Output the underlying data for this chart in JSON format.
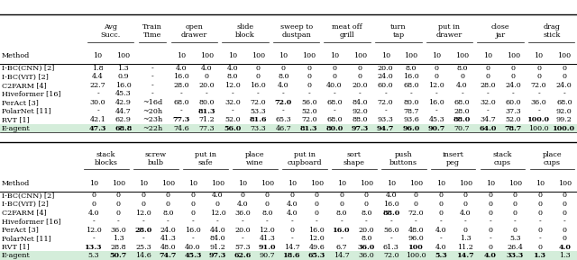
{
  "table1": {
    "col_groups": [
      {
        "name": "Avg\nSucc.",
        "span": 2
      },
      {
        "name": "Train\nTime",
        "span": 1
      },
      {
        "name": "open\ndrawer",
        "span": 2
      },
      {
        "name": "slide\nblock",
        "span": 2
      },
      {
        "name": "sweep to\ndustpan",
        "span": 2
      },
      {
        "name": "meat off\ngrill",
        "span": 2
      },
      {
        "name": "turn\ntap",
        "span": 2
      },
      {
        "name": "put in\ndrawer",
        "span": 2
      },
      {
        "name": "close\njar",
        "span": 2
      },
      {
        "name": "drag\nstick",
        "span": 2
      }
    ],
    "rows": [
      [
        "I-BC(CNN) [2]",
        "1.8",
        "1.3",
        "-",
        "4.0",
        "4.0",
        "4.0",
        "0",
        "0",
        "0",
        "0",
        "0",
        "20.0",
        "8.0",
        "0",
        "8.0",
        "0",
        "0",
        "0",
        "0"
      ],
      [
        "I-BC(ViT) [2]",
        "4.4",
        "0.9",
        "-",
        "16.0",
        "0",
        "8.0",
        "0",
        "8.0",
        "0",
        "0",
        "0",
        "24.0",
        "16.0",
        "0",
        "0",
        "0",
        "0",
        "0",
        "0"
      ],
      [
        "C2FARM [4]",
        "22.7",
        "16.0",
        "-",
        "28.0",
        "20.0",
        "12.0",
        "16.0",
        "4.0",
        "0",
        "40.0",
        "20.0",
        "60.0",
        "68.0",
        "12.0",
        "4.0",
        "28.0",
        "24.0",
        "72.0",
        "24.0"
      ],
      [
        "Hiveformer [16]",
        "-",
        "45.3",
        "-",
        "-",
        "-",
        "-",
        "-",
        "-",
        "-",
        "-",
        "-",
        "-",
        "-",
        "-",
        "-",
        "-",
        "-",
        "-",
        "-"
      ],
      [
        "PerAct [3]",
        "30.0",
        "42.9",
        "~16d",
        "68.0",
        "80.0",
        "32.0",
        "72.0",
        "72.0",
        "56.0",
        "68.0",
        "84.0",
        "72.0",
        "80.0",
        "16.0",
        "68.0",
        "32.0",
        "60.0",
        "36.0",
        "68.0"
      ],
      [
        "PolarNet [11]",
        "-",
        "44.7",
        "~20h",
        "-",
        "81.3",
        "-",
        "53.3",
        "-",
        "52.0",
        "-",
        "92.0",
        "-",
        "78.7",
        "-",
        "28.0",
        "-",
        "37.3",
        "-",
        "92.0"
      ],
      [
        "RVT [1]",
        "42.1",
        "62.9",
        "~23h",
        "77.3",
        "71.2",
        "52.0",
        "81.6",
        "65.3",
        "72.0",
        "68.0",
        "88.0",
        "93.3",
        "93.6",
        "45.3",
        "88.0",
        "34.7",
        "52.0",
        "100.0",
        "99.2"
      ],
      [
        "E-agent",
        "47.3",
        "68.8",
        "~22h",
        "74.6",
        "77.3",
        "56.0",
        "73.3",
        "46.7",
        "81.3",
        "80.0",
        "97.3",
        "94.7",
        "96.0",
        "90.7",
        "70.7",
        "64.0",
        "78.7",
        "100.0",
        "100.0"
      ]
    ]
  },
  "table2": {
    "col_groups": [
      {
        "name": "stack\nblocks",
        "span": 2
      },
      {
        "name": "screw\nbulb",
        "span": 2
      },
      {
        "name": "put in\nsafe",
        "span": 2
      },
      {
        "name": "place\nwine",
        "span": 2
      },
      {
        "name": "put in\ncupboard",
        "span": 2
      },
      {
        "name": "sort\nshape",
        "span": 2
      },
      {
        "name": "push\nbuttons",
        "span": 2
      },
      {
        "name": "insert\npeg",
        "span": 2
      },
      {
        "name": "stack\ncups",
        "span": 2
      },
      {
        "name": "place\ncups",
        "span": 2
      }
    ],
    "rows": [
      [
        "I-BC(CNN) [2]",
        "0",
        "0",
        "0",
        "0",
        "0",
        "4.0",
        "0",
        "0",
        "0",
        "0",
        "0",
        "0",
        "4.0",
        "0",
        "0",
        "0",
        "0",
        "0",
        "0",
        "0"
      ],
      [
        "I-BC(ViT) [2]",
        "0",
        "0",
        "0",
        "0",
        "0",
        "0",
        "4.0",
        "0",
        "4.0",
        "0",
        "0",
        "0",
        "16.0",
        "0",
        "0",
        "0",
        "0",
        "0",
        "0",
        "0"
      ],
      [
        "C2FARM [4]",
        "4.0",
        "0",
        "12.0",
        "8.0",
        "0",
        "12.0",
        "36.0",
        "8.0",
        "4.0",
        "0",
        "8.0",
        "8.0",
        "88.0",
        "72.0",
        "0",
        "4.0",
        "0",
        "0",
        "0",
        "0"
      ],
      [
        "Hiveformer [16]",
        "-",
        "-",
        "-",
        "-",
        "-",
        "-",
        "-",
        "-",
        "-",
        "-",
        "-",
        "-",
        "-",
        "-",
        "-",
        "-",
        "-",
        "-",
        "-",
        "-"
      ],
      [
        "PerAct [3]",
        "12.0",
        "36.0",
        "28.0",
        "24.0",
        "16.0",
        "44.0",
        "20.0",
        "12.0",
        "0",
        "16.0",
        "16.0",
        "20.0",
        "56.0",
        "48.0",
        "4.0",
        "0",
        "0",
        "0",
        "0",
        "0"
      ],
      [
        "PolarNet [11]",
        "-",
        "1.3",
        "-",
        "41.3",
        "-",
        "84.0",
        "-",
        "41.3",
        "-",
        "12.0",
        "-",
        "8.0",
        "-",
        "96.0",
        "-",
        "1.3",
        "-",
        "5.3",
        "-",
        "0"
      ],
      [
        "RVT [1]",
        "13.3",
        "28.8",
        "25.3",
        "48.0",
        "40.0",
        "91.2",
        "57.3",
        "91.0",
        "14.7",
        "49.6",
        "6.7",
        "36.0",
        "61.3",
        "100",
        "4.0",
        "11.2",
        "0",
        "26.4",
        "0",
        "4.0"
      ],
      [
        "E-agent",
        "5.3",
        "50.7",
        "14.6",
        "74.7",
        "45.3",
        "97.3",
        "62.6",
        "90.7",
        "18.6",
        "65.3",
        "14.7",
        "36.0",
        "72.0",
        "100.0",
        "5.3",
        "14.7",
        "4.0",
        "33.3",
        "1.3",
        "1.3"
      ]
    ]
  },
  "highlight_color": "#d4edda",
  "font_size": 5.8,
  "header_font_size": 5.8,
  "sub_font_size": 5.8
}
